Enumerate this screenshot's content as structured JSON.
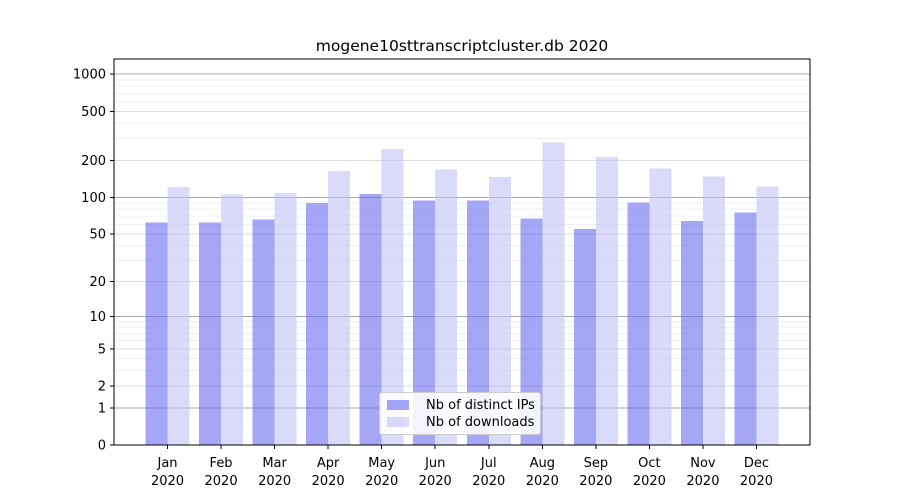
{
  "chart_data": {
    "type": "bar",
    "title": "mogene10sttranscriptcluster.db 2020",
    "months": [
      "Jan",
      "Feb",
      "Mar",
      "Apr",
      "May",
      "Jun",
      "Jul",
      "Aug",
      "Sep",
      "Oct",
      "Nov",
      "Dec"
    ],
    "year": "2020",
    "series": [
      {
        "name": "Nb of distinct IPs",
        "color": "rgba(107,107,240,0.6)",
        "values": [
          62,
          62,
          66,
          90,
          106,
          94,
          94,
          67,
          55,
          91,
          64,
          75
        ]
      },
      {
        "name": "Nb of downloads",
        "color": "rgba(193,193,246,0.6)",
        "values": [
          121,
          105,
          108,
          164,
          247,
          169,
          146,
          278,
          213,
          172,
          147,
          122
        ]
      }
    ],
    "y_ticks": [
      0,
      1,
      2,
      5,
      10,
      20,
      50,
      100,
      200,
      500,
      1000
    ],
    "y_scale": "log10(value+1)",
    "ylim": [
      0,
      1326
    ],
    "xlabel": "",
    "ylabel": "",
    "grid": "on",
    "legend_position": "lower-center",
    "grid_colors": {
      "power_of_ten": "#a8a8a8",
      "labeled": "#dcdcdc",
      "minor": "#efefef"
    }
  }
}
